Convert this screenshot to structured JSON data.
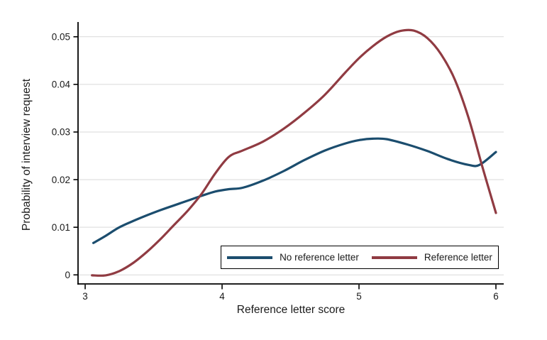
{
  "chart_data": {
    "type": "line",
    "title": "",
    "xlabel": "Reference letter score",
    "ylabel": "Probability of interview request",
    "xlim": [
      2.948,
      6.057
    ],
    "ylim": [
      -0.0019,
      0.0531
    ],
    "x_ticks": [
      3,
      4,
      5,
      6
    ],
    "x_tick_labels": [
      "3",
      "4",
      "5",
      "6"
    ],
    "y_ticks": [
      0,
      0.01,
      0.02,
      0.03,
      0.04,
      0.05
    ],
    "y_tick_labels": [
      "0",
      "0.01",
      "0.02",
      "0.03",
      "0.04",
      "0.05"
    ],
    "grid": "horizontal",
    "grid_color": "#d9d9d9",
    "axis_color": "#000000",
    "tick_label_color": "#1a1a1a",
    "legend_position": "inside-bottom-right",
    "series": [
      {
        "name": "No reference letter",
        "color": "#1b4d6e",
        "points": [
          [
            3.06,
            0.0067
          ],
          [
            3.15,
            0.0082
          ],
          [
            3.25,
            0.01
          ],
          [
            3.35,
            0.0113
          ],
          [
            3.45,
            0.0125
          ],
          [
            3.55,
            0.0136
          ],
          [
            3.65,
            0.0146
          ],
          [
            3.75,
            0.0156
          ],
          [
            3.85,
            0.0166
          ],
          [
            3.95,
            0.0175
          ],
          [
            4.05,
            0.018
          ],
          [
            4.15,
            0.0183
          ],
          [
            4.3,
            0.0198
          ],
          [
            4.45,
            0.0218
          ],
          [
            4.6,
            0.0241
          ],
          [
            4.75,
            0.0261
          ],
          [
            4.9,
            0.0276
          ],
          [
            5.0,
            0.0283
          ],
          [
            5.1,
            0.0286
          ],
          [
            5.2,
            0.0285
          ],
          [
            5.35,
            0.0274
          ],
          [
            5.5,
            0.026
          ],
          [
            5.65,
            0.0243
          ],
          [
            5.8,
            0.0231
          ],
          [
            5.88,
            0.0231
          ],
          [
            6.0,
            0.0258
          ]
        ]
      },
      {
        "name": "Reference letter",
        "color": "#903b42",
        "points": [
          [
            3.05,
            -0.0001
          ],
          [
            3.15,
            -0.0001
          ],
          [
            3.25,
            0.0008
          ],
          [
            3.35,
            0.0025
          ],
          [
            3.45,
            0.0048
          ],
          [
            3.55,
            0.0075
          ],
          [
            3.65,
            0.0105
          ],
          [
            3.75,
            0.0135
          ],
          [
            3.85,
            0.017
          ],
          [
            3.95,
            0.0213
          ],
          [
            4.05,
            0.0248
          ],
          [
            4.15,
            0.0261
          ],
          [
            4.3,
            0.028
          ],
          [
            4.45,
            0.0307
          ],
          [
            4.6,
            0.034
          ],
          [
            4.75,
            0.0378
          ],
          [
            4.9,
            0.0425
          ],
          [
            5.0,
            0.0455
          ],
          [
            5.1,
            0.048
          ],
          [
            5.2,
            0.05
          ],
          [
            5.3,
            0.0512
          ],
          [
            5.4,
            0.0513
          ],
          [
            5.5,
            0.0497
          ],
          [
            5.6,
            0.0463
          ],
          [
            5.7,
            0.041
          ],
          [
            5.8,
            0.033
          ],
          [
            5.9,
            0.0228
          ],
          [
            6.0,
            0.013
          ]
        ]
      }
    ]
  }
}
